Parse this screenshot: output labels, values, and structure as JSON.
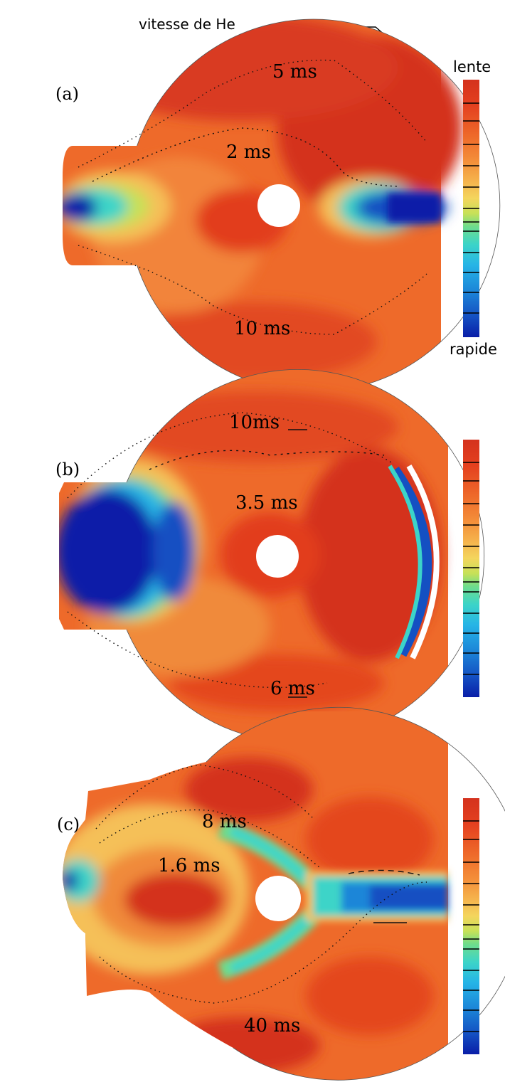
{
  "header": {
    "annotation": "vitesse de He"
  },
  "colorbar": {
    "top_label": "lente",
    "bottom_label": "rapide",
    "stops": [
      "#d4321e",
      "#e4401f",
      "#ee6a2a",
      "#f4903a",
      "#f5b64e",
      "#f4d55d",
      "#c6e158",
      "#6edc8c",
      "#3cd4c8",
      "#26b4e6",
      "#1c86d8",
      "#1450c2",
      "#0a1ea8"
    ]
  },
  "panels": [
    {
      "id": "a",
      "label": "(a)",
      "times": [
        "5 ms",
        "2 ms",
        "10 ms"
      ]
    },
    {
      "id": "b",
      "label": "(b)",
      "times": [
        "10ms",
        "3.5 ms",
        "6 ms"
      ]
    },
    {
      "id": "c",
      "label": "(c)",
      "times": [
        "8 ms",
        "1.6 ms",
        "40 ms"
      ]
    }
  ]
}
